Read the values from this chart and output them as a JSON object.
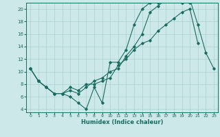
{
  "xlabel": "Humidex (Indice chaleur)",
  "ylabel": "",
  "bg_color": "#cce8e8",
  "line_color": "#1a6b60",
  "grid_color": "#aad0d0",
  "xlim": [
    -0.5,
    23.5
  ],
  "ylim": [
    3.5,
    21.0
  ],
  "xticks": [
    0,
    1,
    2,
    3,
    4,
    5,
    6,
    7,
    8,
    9,
    10,
    11,
    12,
    13,
    14,
    15,
    16,
    17,
    18,
    19,
    20,
    21,
    22,
    23
  ],
  "yticks": [
    4,
    6,
    8,
    10,
    12,
    14,
    16,
    18,
    20
  ],
  "line1_x": [
    0,
    1,
    2,
    3,
    4,
    5,
    6,
    7,
    8,
    9,
    10,
    11,
    12,
    13,
    14,
    15,
    16,
    17,
    18,
    19,
    20,
    21,
    22,
    23
  ],
  "line1_y": [
    10.5,
    8.5,
    7.5,
    6.5,
    6.5,
    6.0,
    5.0,
    4.0,
    7.5,
    5.0,
    11.5,
    11.5,
    13.5,
    17.5,
    20.0,
    21.0,
    21.0,
    21.5,
    21.5,
    21.0,
    21.5,
    17.5,
    13.0,
    10.5
  ],
  "line2_x": [
    0,
    1,
    2,
    3,
    4,
    5,
    6,
    7,
    8,
    9,
    10,
    11,
    12,
    13,
    14,
    15,
    16,
    17,
    18,
    19,
    20,
    21
  ],
  "line2_y": [
    10.5,
    8.5,
    7.5,
    6.5,
    6.5,
    7.5,
    7.0,
    8.0,
    8.0,
    8.5,
    9.0,
    11.0,
    12.0,
    13.5,
    14.5,
    15.0,
    16.5,
    17.5,
    18.5,
    19.5,
    20.0,
    14.5
  ],
  "line3_x": [
    0,
    1,
    2,
    3,
    4,
    5,
    6,
    7,
    8,
    9,
    10,
    11,
    12,
    13,
    14,
    15,
    16,
    17,
    18,
    19,
    20,
    21
  ],
  "line3_y": [
    10.5,
    8.5,
    7.5,
    6.5,
    6.5,
    7.0,
    6.5,
    7.5,
    8.5,
    9.0,
    10.0,
    10.5,
    12.5,
    14.0,
    16.0,
    19.5,
    20.5,
    21.5,
    21.5,
    21.0,
    21.0,
    21.5
  ]
}
